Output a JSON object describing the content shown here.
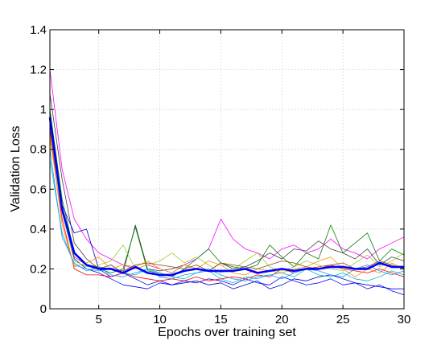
{
  "chart_data": {
    "type": "line",
    "title": "",
    "xlabel": "Epochs over training set",
    "ylabel": "Validation Loss",
    "xlim": [
      1,
      30
    ],
    "ylim": [
      0,
      1.4
    ],
    "xticks": [
      5,
      10,
      15,
      20,
      25,
      30
    ],
    "yticks": [
      0,
      0.2,
      0.4,
      0.6,
      0.8,
      1,
      1.2,
      1.4
    ],
    "ytick_labels": [
      "0",
      "0.2",
      "0.4",
      "0.6",
      "0.8",
      "1",
      "1.2",
      "1.4"
    ],
    "grid": true,
    "x": [
      1,
      2,
      3,
      4,
      5,
      6,
      7,
      8,
      9,
      10,
      11,
      12,
      13,
      14,
      15,
      16,
      17,
      18,
      19,
      20,
      21,
      22,
      23,
      24,
      25,
      26,
      27,
      28,
      29,
      30
    ],
    "series": [
      {
        "color": "#ff00ff",
        "width": 0.8,
        "values": [
          1.2,
          0.7,
          0.45,
          0.35,
          0.28,
          0.25,
          0.22,
          0.2,
          0.22,
          0.2,
          0.18,
          0.22,
          0.25,
          0.3,
          0.45,
          0.35,
          0.3,
          0.28,
          0.25,
          0.3,
          0.32,
          0.28,
          0.3,
          0.35,
          0.3,
          0.28,
          0.25,
          0.3,
          0.33,
          0.36
        ]
      },
      {
        "color": "#404040",
        "width": 0.8,
        "values": [
          1.08,
          0.65,
          0.33,
          0.25,
          0.2,
          0.22,
          0.18,
          0.42,
          0.2,
          0.19,
          0.2,
          0.22,
          0.2,
          0.19,
          0.23,
          0.2,
          0.21,
          0.24,
          0.28,
          0.25,
          0.3,
          0.29,
          0.34,
          0.3,
          0.28,
          0.25,
          0.3,
          0.22,
          0.26,
          0.24
        ]
      },
      {
        "color": "#008000",
        "width": 0.8,
        "values": [
          1.0,
          0.55,
          0.28,
          0.22,
          0.2,
          0.18,
          0.2,
          0.41,
          0.19,
          0.18,
          0.16,
          0.2,
          0.25,
          0.3,
          0.23,
          0.21,
          0.2,
          0.22,
          0.32,
          0.26,
          0.21,
          0.28,
          0.25,
          0.42,
          0.28,
          0.33,
          0.38,
          0.24,
          0.3,
          0.27
        ]
      },
      {
        "color": "#0000cd",
        "width": 0.8,
        "values": [
          0.98,
          0.52,
          0.38,
          0.4,
          0.2,
          0.16,
          0.18,
          0.15,
          0.12,
          0.14,
          0.12,
          0.13,
          0.14,
          0.12,
          0.13,
          0.1,
          0.12,
          0.14,
          0.1,
          0.12,
          0.15,
          0.14,
          0.16,
          0.17,
          0.15,
          0.13,
          0.1,
          0.12,
          0.09,
          0.07
        ]
      },
      {
        "color": "#0000ff",
        "width": 0.8,
        "values": [
          0.95,
          0.5,
          0.25,
          0.2,
          0.18,
          0.15,
          0.12,
          0.11,
          0.1,
          0.13,
          0.12,
          0.14,
          0.13,
          0.15,
          0.14,
          0.12,
          0.15,
          0.13,
          0.12,
          0.16,
          0.14,
          0.12,
          0.13,
          0.15,
          0.12,
          0.13,
          0.12,
          0.11,
          0.1,
          0.1
        ]
      },
      {
        "color": "#ff0000",
        "width": 0.8,
        "values": [
          0.9,
          0.45,
          0.2,
          0.17,
          0.17,
          0.16,
          0.18,
          0.16,
          0.15,
          0.14,
          0.15,
          0.14,
          0.16,
          0.14,
          0.15,
          0.16,
          0.15,
          0.17,
          0.16,
          0.2,
          0.18,
          0.2,
          0.21,
          0.22,
          0.2,
          0.19,
          0.18,
          0.2,
          0.18,
          0.16
        ]
      },
      {
        "color": "#00bfbf",
        "width": 0.8,
        "values": [
          0.75,
          0.38,
          0.22,
          0.2,
          0.19,
          0.2,
          0.18,
          0.17,
          0.2,
          0.18,
          0.16,
          0.15,
          0.18,
          0.19,
          0.15,
          0.13,
          0.16,
          0.15,
          0.17,
          0.18,
          0.16,
          0.2,
          0.17,
          0.16,
          0.18,
          0.15,
          0.14,
          0.16,
          0.19,
          0.17
        ]
      },
      {
        "color": "#9acd32",
        "width": 0.8,
        "values": [
          0.85,
          0.48,
          0.24,
          0.21,
          0.22,
          0.24,
          0.32,
          0.2,
          0.22,
          0.24,
          0.28,
          0.23,
          0.26,
          0.22,
          0.18,
          0.2,
          0.24,
          0.28,
          0.21,
          0.19,
          0.21,
          0.24,
          0.22,
          0.2,
          0.19,
          0.23,
          0.27,
          0.21,
          0.24,
          0.28
        ]
      },
      {
        "color": "#ff8c00",
        "width": 0.8,
        "values": [
          0.88,
          0.42,
          0.21,
          0.23,
          0.26,
          0.2,
          0.22,
          0.21,
          0.24,
          0.2,
          0.18,
          0.22,
          0.2,
          0.24,
          0.22,
          0.18,
          0.17,
          0.2,
          0.19,
          0.18,
          0.2,
          0.21,
          0.24,
          0.26,
          0.2,
          0.16,
          0.2,
          0.18,
          0.23,
          0.2
        ]
      },
      {
        "color": "#8b4513",
        "width": 0.8,
        "values": [
          0.92,
          0.5,
          0.26,
          0.22,
          0.21,
          0.2,
          0.19,
          0.22,
          0.23,
          0.22,
          0.21,
          0.2,
          0.22,
          0.19,
          0.23,
          0.22,
          0.21,
          0.2,
          0.22,
          0.24,
          0.23,
          0.21,
          0.2,
          0.22,
          0.23,
          0.2,
          0.21,
          0.24,
          0.22,
          0.2
        ]
      },
      {
        "color": "#1e90ff",
        "width": 0.8,
        "values": [
          0.8,
          0.36,
          0.23,
          0.19,
          0.21,
          0.17,
          0.16,
          0.18,
          0.2,
          0.16,
          0.15,
          0.17,
          0.18,
          0.2,
          0.17,
          0.15,
          0.14,
          0.16,
          0.17,
          0.15,
          0.18,
          0.2,
          0.19,
          0.17,
          0.16,
          0.2,
          0.22,
          0.19,
          0.17,
          0.19
        ]
      },
      {
        "color": "#0000ff",
        "width": 2.6,
        "values": [
          0.96,
          0.5,
          0.28,
          0.22,
          0.2,
          0.2,
          0.18,
          0.21,
          0.18,
          0.17,
          0.17,
          0.19,
          0.2,
          0.19,
          0.19,
          0.19,
          0.2,
          0.18,
          0.19,
          0.2,
          0.19,
          0.2,
          0.2,
          0.21,
          0.21,
          0.2,
          0.2,
          0.23,
          0.21,
          0.21
        ]
      }
    ]
  }
}
